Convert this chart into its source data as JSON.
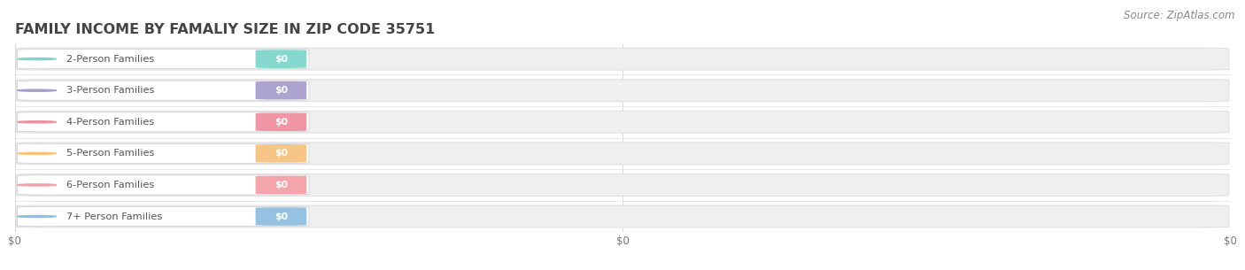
{
  "title": "FAMILY INCOME BY FAMALIY SIZE IN ZIP CODE 35751",
  "source_text": "Source: ZipAtlas.com",
  "categories": [
    "2-Person Families",
    "3-Person Families",
    "4-Person Families",
    "5-Person Families",
    "6-Person Families",
    "7+ Person Families"
  ],
  "values": [
    0,
    0,
    0,
    0,
    0,
    0
  ],
  "bar_colors": [
    "#7dd6cc",
    "#a89ecd",
    "#f08fa0",
    "#f7c27e",
    "#f4a0a8",
    "#90bfe0"
  ],
  "value_labels": [
    "$0",
    "$0",
    "$0",
    "$0",
    "$0",
    "$0"
  ],
  "x_tick_labels": [
    "$0",
    "$0",
    "$0"
  ],
  "background_color": "#ffffff",
  "title_fontsize": 11.5,
  "source_fontsize": 8.5,
  "bar_bg_color": "#efefef",
  "bar_text_color": "#555555",
  "badge_text_color": "#ffffff",
  "grid_color": "#d8d8d8",
  "sep_color": "#e4e4e4"
}
